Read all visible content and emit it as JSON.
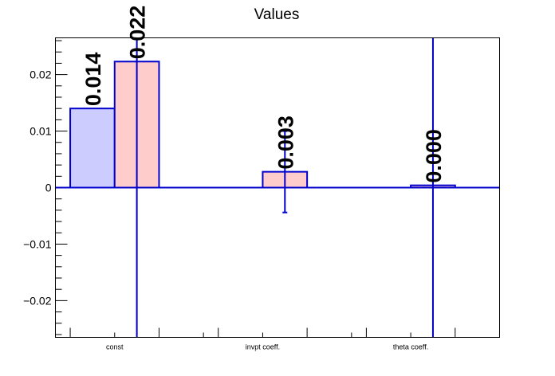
{
  "chart_data": {
    "type": "bar",
    "title": "Values",
    "xlabel": "",
    "ylabel": "",
    "categories": [
      "const",
      "invpt coeff.",
      "theta coeff."
    ],
    "ylim": [
      -0.0265,
      0.0265
    ],
    "yticks": [
      -0.02,
      -0.01,
      0,
      0.01,
      0.02
    ],
    "ytick_labels": [
      "−0.02",
      "−0.01",
      "0",
      "0.01",
      "0.02"
    ],
    "grid": false,
    "series": [
      {
        "values": [
          0.014,
          0,
          0
        ],
        "errors": [
          null,
          null,
          null
        ],
        "data_labels": [
          "0.014",
          "",
          ""
        ],
        "fill": "#ccccff",
        "stroke": "#0000cc"
      },
      {
        "values": [
          0.0223,
          0.0028,
          0.0004
        ],
        "errors": [
          0.3,
          0.0072,
          0.3
        ],
        "data_labels": [
          "0.022",
          "0.003",
          "0.000"
        ],
        "fill": "#ffcccc",
        "stroke": "#0000cc"
      }
    ],
    "colors": {
      "axis": "#000000",
      "zero_line": "#0000cc",
      "error_bar": "#0000cc"
    }
  }
}
